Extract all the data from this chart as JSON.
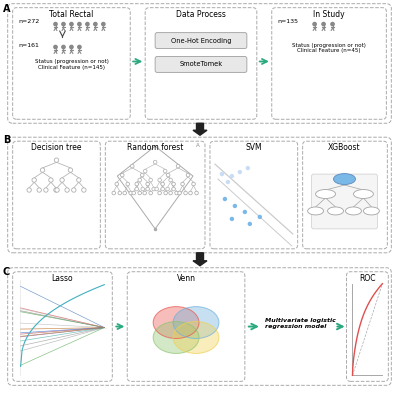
{
  "bg_color": "#ffffff",
  "dashed_box_color": "#aaaaaa",
  "arrow_color": "#2aaa7e",
  "label_A": "A",
  "label_B": "B",
  "label_C": "C",
  "panel_A_title1": "Total Rectal",
  "panel_A_title2": "Data Process",
  "panel_A_title3": "In Study",
  "panel_A_text1": "n=272",
  "panel_A_text2": "n=161",
  "panel_A_text3": "Status (progression or not)\nClinical Feature (n=145)",
  "panel_A_proc1": "One-Hot Encoding",
  "panel_A_proc2": "SmoteTomek",
  "panel_A_text4": "n=135",
  "panel_A_text5": "Status (progression or not)\nClinical Feature (n=45)",
  "panel_B_title1": "Decision tree",
  "panel_B_title2": "Random forest",
  "panel_B_title3": "SVM",
  "panel_B_title4": "XGBoost",
  "panel_C_title1": "Lasso",
  "panel_C_title2": "Venn",
  "panel_C_title3": "ROC",
  "panel_C_text": "Multivariate logistic\nregression model",
  "venn_colors": [
    "#e8524a",
    "#6ab0de",
    "#8dc46e",
    "#f0d050"
  ],
  "lasso_colors": [
    "#888888",
    "#999999",
    "#aaaaaa",
    "#bbbbbb",
    "#cccccc",
    "#c05050",
    "#5080c0",
    "#50a050",
    "#d08030",
    "#8050a0",
    "#50b0b0",
    "#d06060",
    "#4070d0",
    "#60b060",
    "#c09040"
  ],
  "roc_color": "#e05050",
  "svm_dot_color": "#7ab8e8",
  "xgb_node_color": "#7ab8e8"
}
